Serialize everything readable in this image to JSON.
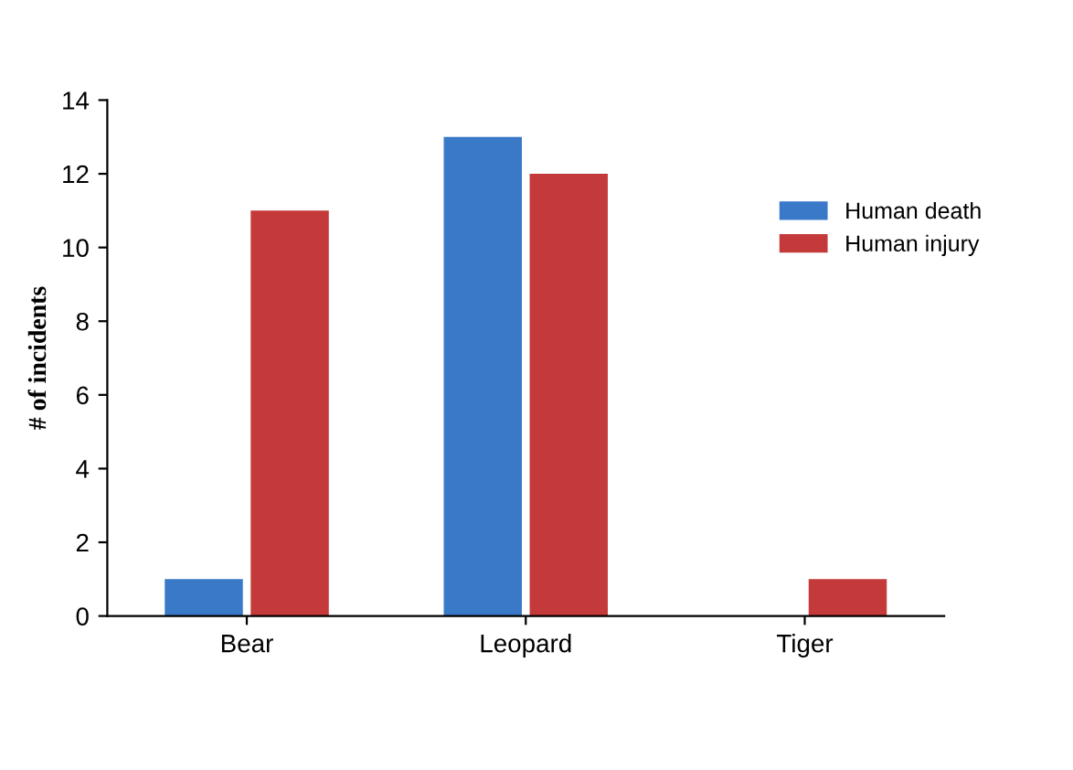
{
  "chart_data": {
    "type": "bar",
    "ylabel": "# of incidents",
    "categories": [
      "Bear",
      "Leopard",
      "Tiger"
    ],
    "series": [
      {
        "name": "Human death",
        "color": "#3a78c8",
        "values": [
          1,
          13,
          0
        ]
      },
      {
        "name": "Human injury",
        "color": "#c43a3a",
        "values": [
          11,
          12,
          1
        ]
      }
    ],
    "ylim": [
      0,
      14
    ],
    "yticks": [
      0,
      2,
      4,
      6,
      8,
      10,
      12,
      14
    ],
    "legend": "right",
    "grid": false
  }
}
